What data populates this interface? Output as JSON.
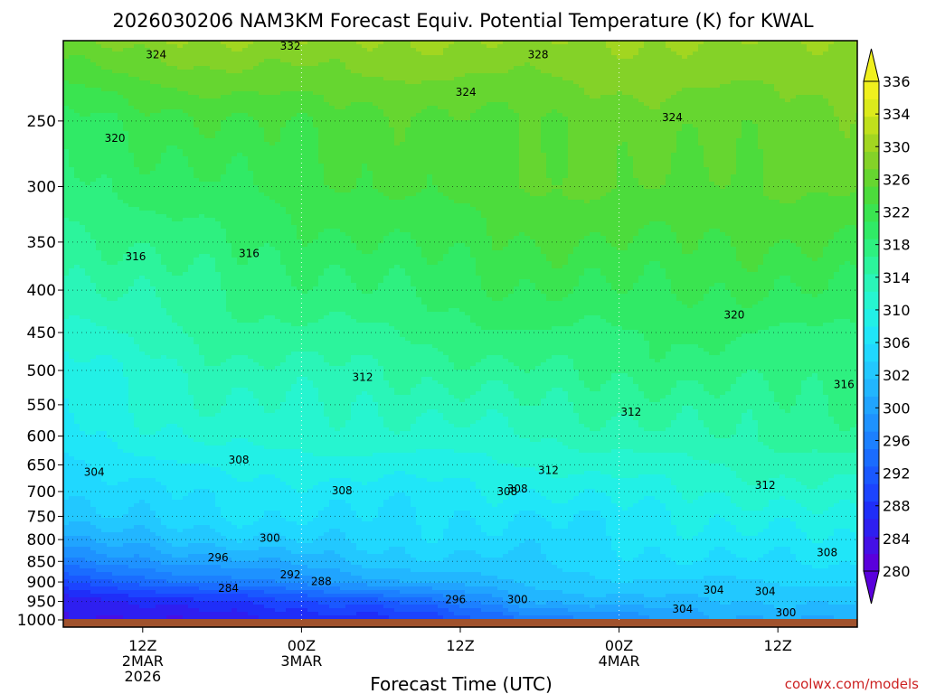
{
  "chart_data": {
    "type": "heatmap",
    "subtype": "time-height filled contour",
    "title": "2026030206 NAM3KM Forecast Equiv. Potential Temperature (K) for KWAL",
    "xlabel": "Forecast Time (UTC)",
    "ylabel": "",
    "y_scale": "log (pressure, inverted)",
    "ylim": [
      1000,
      200
    ],
    "y_ticks": [
      250,
      300,
      350,
      400,
      450,
      500,
      550,
      600,
      650,
      700,
      750,
      800,
      850,
      900,
      950,
      1000
    ],
    "x_range_hours": [
      0,
      60
    ],
    "x_ticks": [
      {
        "hour": 6,
        "label": [
          "12Z",
          "2MAR",
          "2026"
        ]
      },
      {
        "hour": 18,
        "label": [
          "00Z",
          "3MAR"
        ]
      },
      {
        "hour": 30,
        "label": [
          "12Z"
        ]
      },
      {
        "hour": 42,
        "label": [
          "00Z",
          "4MAR"
        ]
      },
      {
        "hour": 54,
        "label": [
          "12Z"
        ]
      }
    ],
    "grid": "dotted horizontal at pressure ticks, dotted vertical at 00Z",
    "units": "K",
    "colorbar": {
      "levels": [
        280,
        282,
        284,
        286,
        288,
        290,
        292,
        294,
        296,
        298,
        300,
        302,
        304,
        306,
        308,
        310,
        312,
        314,
        316,
        318,
        320,
        322,
        324,
        326,
        328,
        330,
        332,
        334,
        336
      ],
      "labels": [
        280,
        284,
        288,
        292,
        296,
        300,
        302,
        306,
        310,
        314,
        318,
        322,
        326,
        330,
        334,
        336
      ],
      "colors": [
        "#5a00dc",
        "#4410e6",
        "#2e1ff0",
        "#1f2ef8",
        "#1c44ff",
        "#1a58ff",
        "#1a6cff",
        "#1c80ff",
        "#1e92ff",
        "#20a4ff",
        "#22b6ff",
        "#22c8ff",
        "#20d8ff",
        "#20e6f8",
        "#22f0e6",
        "#26f5d0",
        "#2af5b8",
        "#2cf49c",
        "#2ef080",
        "#30ea66",
        "#3ae450",
        "#4cdc3c",
        "#66d630",
        "#84d228",
        "#a2d620",
        "#c0e01c",
        "#dcea1c",
        "#f0f01e"
      ]
    },
    "theta_e_profiles": [
      {
        "hour": 0,
        "levels": {
          "1000": 283,
          "950": 284,
          "900": 290,
          "850": 296,
          "800": 300,
          "750": 303,
          "700": 304,
          "650": 305,
          "600": 307,
          "550": 308,
          "500": 309,
          "450": 311,
          "400": 313,
          "350": 315,
          "300": 317,
          "250": 319,
          "200": 326
        }
      },
      {
        "hour": 12,
        "levels": {
          "1000": 285,
          "950": 288,
          "900": 295,
          "850": 299,
          "800": 303,
          "750": 306,
          "700": 307,
          "650": 309,
          "600": 311,
          "550": 312,
          "500": 313,
          "450": 315,
          "400": 316,
          "350": 318,
          "300": 320,
          "250": 322,
          "200": 328
        }
      },
      {
        "hour": 24,
        "levels": {
          "1000": 287,
          "950": 291,
          "900": 299,
          "850": 303,
          "800": 305,
          "750": 306,
          "700": 307,
          "650": 309,
          "600": 311,
          "550": 312,
          "500": 314,
          "450": 316,
          "400": 318,
          "350": 320,
          "300": 322,
          "250": 323,
          "200": 328
        }
      },
      {
        "hour": 36,
        "levels": {
          "1000": 294,
          "950": 300,
          "900": 303,
          "850": 304,
          "800": 305,
          "750": 306,
          "700": 308,
          "650": 310,
          "600": 312,
          "550": 314,
          "500": 316,
          "450": 318,
          "400": 320,
          "350": 322,
          "300": 324,
          "250": 324,
          "200": 328
        }
      },
      {
        "hour": 48,
        "levels": {
          "1000": 299,
          "950": 302,
          "900": 304,
          "850": 306,
          "800": 307,
          "750": 308,
          "700": 310,
          "650": 312,
          "600": 314,
          "550": 315,
          "500": 317,
          "450": 318,
          "400": 320,
          "350": 322,
          "300": 324,
          "250": 325,
          "200": 328
        }
      },
      {
        "hour": 60,
        "levels": {
          "1000": 300,
          "950": 302,
          "900": 304,
          "850": 306,
          "800": 308,
          "750": 310,
          "700": 312,
          "650": 313,
          "600": 315,
          "550": 316,
          "500": 317,
          "450": 318,
          "400": 320,
          "350": 322,
          "300": 324,
          "250": 325,
          "200": 328
        }
      }
    ],
    "contour_labels": [
      "332",
      "324",
      "328",
      "324",
      "324",
      "320",
      "316",
      "316",
      "320",
      "312",
      "312",
      "316",
      "308",
      "304",
      "312",
      "308",
      "308",
      "308",
      "312",
      "300",
      "296",
      "292",
      "288",
      "284",
      "296",
      "300",
      "304",
      "304",
      "304",
      "308",
      "300"
    ]
  },
  "credit": "coolwx.com/models"
}
